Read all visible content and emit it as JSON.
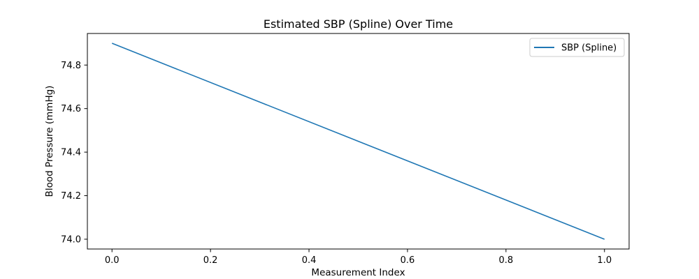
{
  "chart_data": {
    "type": "line",
    "title": "Estimated SBP (Spline) Over Time",
    "xlabel": "Measurement Index",
    "ylabel": "Blood Pressure (mmHg)",
    "xlim": [
      -0.05,
      1.05
    ],
    "ylim": [
      73.955,
      74.945
    ],
    "xticks": [
      0.0,
      0.2,
      0.4,
      0.6,
      0.8,
      1.0
    ],
    "xtick_labels": [
      "0.0",
      "0.2",
      "0.4",
      "0.6",
      "0.8",
      "1.0"
    ],
    "yticks": [
      74.0,
      74.2,
      74.4,
      74.6,
      74.8
    ],
    "ytick_labels": [
      "74.0",
      "74.2",
      "74.4",
      "74.6",
      "74.8"
    ],
    "grid": false,
    "legend_position": "top-right",
    "series": [
      {
        "name": "SBP (Spline)",
        "color": "#1f77b4",
        "x": [
          0.0,
          1.0
        ],
        "y": [
          74.9,
          74.0
        ]
      }
    ]
  }
}
